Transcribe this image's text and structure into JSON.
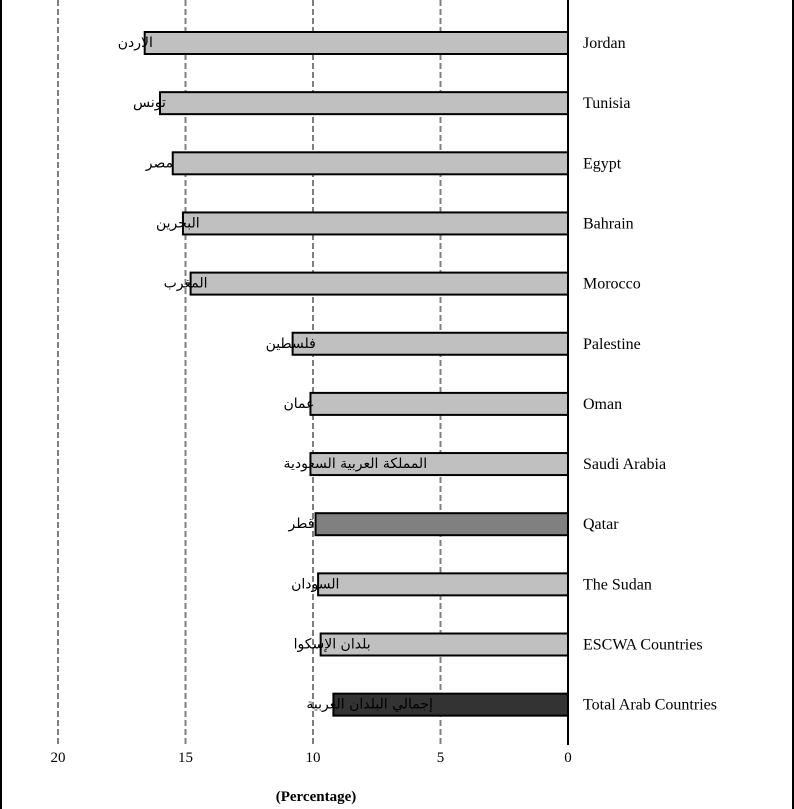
{
  "chart_data": {
    "type": "bar",
    "orientation": "horizontal",
    "x_axis_reversed": true,
    "categories": [
      "Jordan",
      "Tunisia",
      "Egypt",
      "Bahrain",
      "Morocco",
      "Palestine",
      "Oman",
      "Saudi Arabia",
      "Qatar",
      "The Sudan",
      "ESCWA Countries",
      "Total Arab Countries"
    ],
    "categories_arabic": [
      "الاردن",
      "تونس",
      "مصر",
      "البحرين",
      "المغرب",
      "فلسطين",
      "عمان",
      "المملكة العربية السعودية",
      "قطر",
      "السودان",
      "بلدان الإسكوا",
      "إجمالي البلدان العربية"
    ],
    "values": [
      16.6,
      16.0,
      15.5,
      15.1,
      14.8,
      10.8,
      10.1,
      10.1,
      9.9,
      9.8,
      9.7,
      9.2
    ],
    "bar_colors": [
      "#c0c0c0",
      "#c0c0c0",
      "#c0c0c0",
      "#c0c0c0",
      "#c0c0c0",
      "#c0c0c0",
      "#c0c0c0",
      "#c0c0c0",
      "#808080",
      "#c0c0c0",
      "#c0c0c0",
      "#333333"
    ],
    "xlim": [
      0,
      20
    ],
    "xticks": [
      "20",
      "15",
      "10",
      "5",
      "0"
    ],
    "xlabel": "(Percentage)",
    "grid": "vertical-dashed"
  }
}
